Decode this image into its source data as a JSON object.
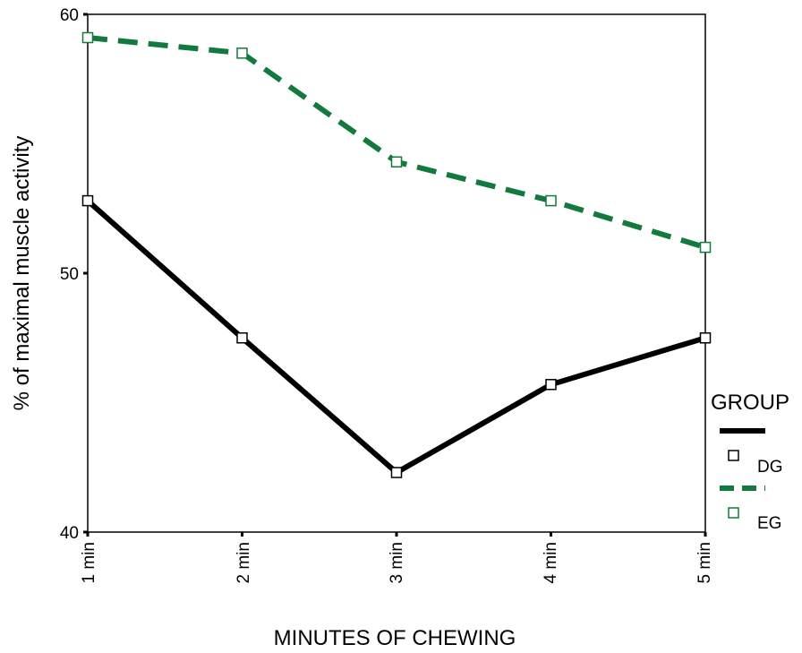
{
  "chart_data": {
    "type": "line",
    "title": "",
    "xlabel": "MINUTES OF CHEWING",
    "ylabel": "% of maximal muscle activity",
    "categories": [
      "1 min",
      "2 min",
      "3 min",
      "4 min",
      "5 min"
    ],
    "ylim": [
      40,
      60
    ],
    "yticks": [
      "40",
      "50",
      "60"
    ],
    "grid": false,
    "legend": {
      "title": "GROUP",
      "placement": "right"
    },
    "series": [
      {
        "name": "DG",
        "values": [
          52.8,
          47.5,
          42.3,
          45.7,
          47.5
        ],
        "color": "#000000",
        "dash": "solid"
      },
      {
        "name": "EG",
        "values": [
          59.1,
          58.5,
          54.3,
          52.8,
          51.0
        ],
        "color": "#127a3c",
        "dash": "dashed"
      }
    ]
  }
}
